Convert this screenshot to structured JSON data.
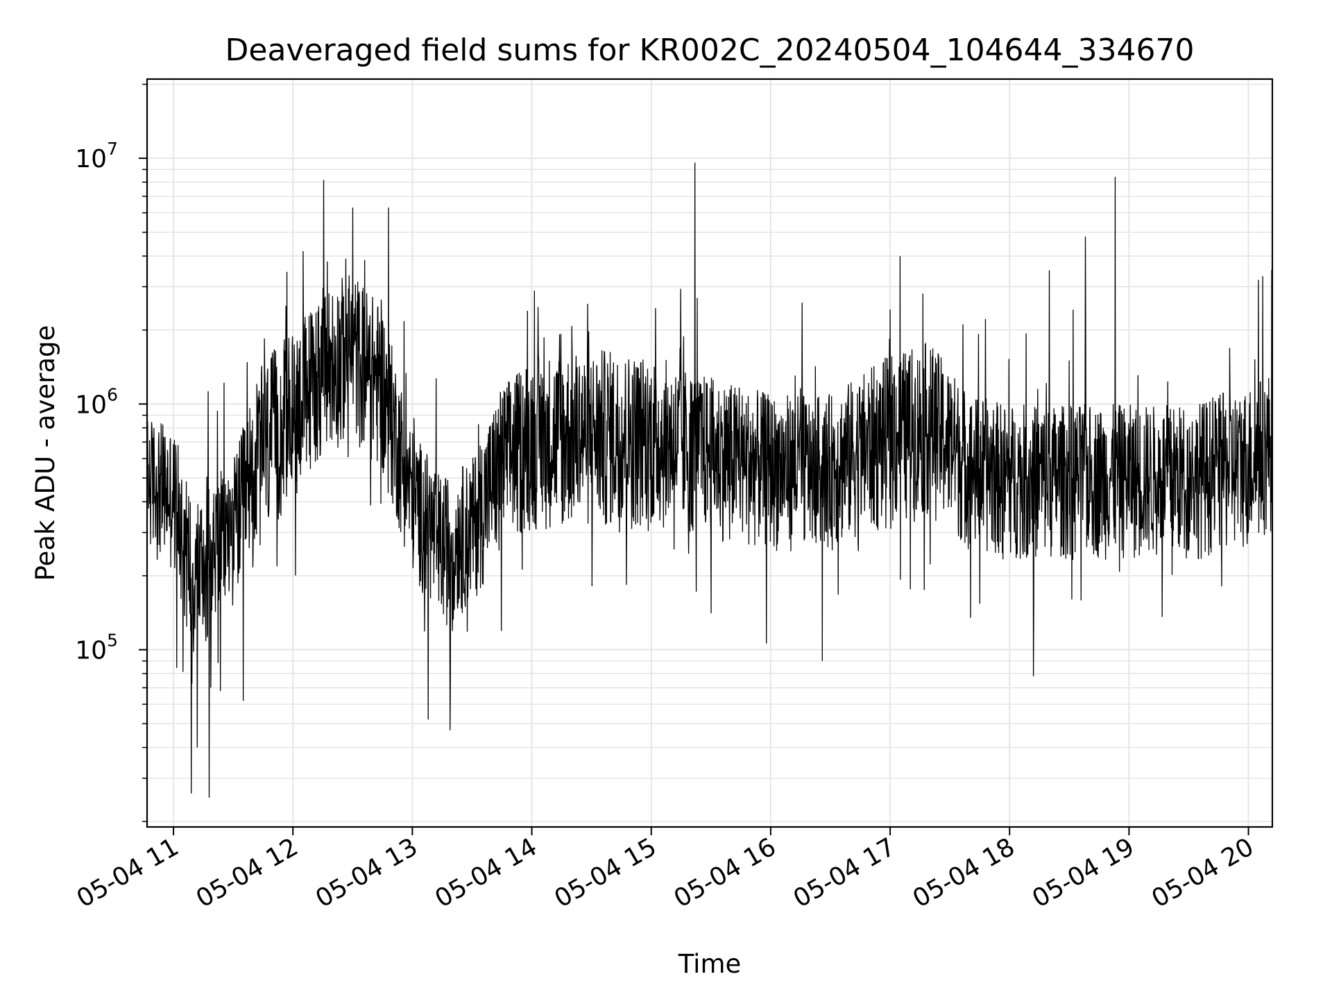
{
  "chart_data": {
    "type": "line",
    "title": "Deaveraged field sums for KR002C_20240504_104644_334670",
    "xlabel": "Time",
    "ylabel": "Peak ADU - average",
    "yscale": "log",
    "xlim": [
      "2024-05-04T10:46:44",
      "2024-05-04T20:12:00"
    ],
    "ylim": [
      19000,
      21000000
    ],
    "x_ticks": [
      {
        "t": "2024-05-04T11:00:00",
        "label": "05-04 11"
      },
      {
        "t": "2024-05-04T12:00:00",
        "label": "05-04 12"
      },
      {
        "t": "2024-05-04T13:00:00",
        "label": "05-04 13"
      },
      {
        "t": "2024-05-04T14:00:00",
        "label": "05-04 14"
      },
      {
        "t": "2024-05-04T15:00:00",
        "label": "05-04 15"
      },
      {
        "t": "2024-05-04T16:00:00",
        "label": "05-04 16"
      },
      {
        "t": "2024-05-04T17:00:00",
        "label": "05-04 17"
      },
      {
        "t": "2024-05-04T18:00:00",
        "label": "05-04 18"
      },
      {
        "t": "2024-05-04T19:00:00",
        "label": "05-04 19"
      },
      {
        "t": "2024-05-04T20:00:00",
        "label": "05-04 20"
      }
    ],
    "y_ticks": [
      {
        "value": 100000,
        "base": "10",
        "exp": "5"
      },
      {
        "value": 1000000,
        "base": "10",
        "exp": "6"
      },
      {
        "value": 10000000,
        "base": "10",
        "exp": "7"
      }
    ],
    "grid": true,
    "line_color": "#000000",
    "grid_color": "#e6e6e6",
    "envelope": [
      {
        "t": "2024-05-04T10:47:00",
        "low": 250000,
        "high": 900000
      },
      {
        "t": "2024-05-04T11:00:00",
        "low": 200000,
        "high": 800000
      },
      {
        "t": "2024-05-04T11:10:00",
        "low": 90000,
        "high": 400000
      },
      {
        "t": "2024-05-04T11:20:00",
        "low": 120000,
        "high": 500000
      },
      {
        "t": "2024-05-04T11:30:00",
        "low": 150000,
        "high": 600000
      },
      {
        "t": "2024-05-04T11:45:00",
        "low": 250000,
        "high": 1500000
      },
      {
        "t": "2024-05-04T12:00:00",
        "low": 400000,
        "high": 2000000
      },
      {
        "t": "2024-05-04T12:15:00",
        "low": 600000,
        "high": 3000000
      },
      {
        "t": "2024-05-04T12:30:00",
        "low": 700000,
        "high": 3500000
      },
      {
        "t": "2024-05-04T12:45:00",
        "low": 500000,
        "high": 2500000
      },
      {
        "t": "2024-05-04T13:00:00",
        "low": 200000,
        "high": 800000
      },
      {
        "t": "2024-05-04T13:15:00",
        "low": 120000,
        "high": 500000
      },
      {
        "t": "2024-05-04T13:30:00",
        "low": 150000,
        "high": 600000
      },
      {
        "t": "2024-05-04T13:45:00",
        "low": 250000,
        "high": 1200000
      },
      {
        "t": "2024-05-04T14:00:00",
        "low": 300000,
        "high": 1600000
      },
      {
        "t": "2024-05-04T14:30:00",
        "low": 300000,
        "high": 1700000
      },
      {
        "t": "2024-05-04T15:00:00",
        "low": 300000,
        "high": 1600000
      },
      {
        "t": "2024-05-04T15:30:00",
        "low": 280000,
        "high": 1300000
      },
      {
        "t": "2024-05-04T16:00:00",
        "low": 250000,
        "high": 1100000
      },
      {
        "t": "2024-05-04T16:30:00",
        "low": 250000,
        "high": 1100000
      },
      {
        "t": "2024-05-04T17:00:00",
        "low": 300000,
        "high": 1600000
      },
      {
        "t": "2024-05-04T17:20:00",
        "low": 350000,
        "high": 1800000
      },
      {
        "t": "2024-05-04T17:40:00",
        "low": 250000,
        "high": 1100000
      },
      {
        "t": "2024-05-04T18:00:00",
        "low": 230000,
        "high": 1000000
      },
      {
        "t": "2024-05-04T18:30:00",
        "low": 230000,
        "high": 1000000
      },
      {
        "t": "2024-05-04T19:00:00",
        "low": 230000,
        "high": 1000000
      },
      {
        "t": "2024-05-04T19:30:00",
        "low": 230000,
        "high": 1000000
      },
      {
        "t": "2024-05-04T20:00:00",
        "low": 250000,
        "high": 1200000
      },
      {
        "t": "2024-05-04T20:12:00",
        "low": 300000,
        "high": 1400000
      }
    ],
    "spikes": [
      {
        "t": "2024-05-04T11:09:00",
        "value": 26000
      },
      {
        "t": "2024-05-04T11:12:00",
        "value": 40000
      },
      {
        "t": "2024-05-04T11:18:00",
        "value": 25000
      },
      {
        "t": "2024-05-04T11:35:00",
        "value": 62000
      },
      {
        "t": "2024-05-04T12:30:00",
        "value": 6300000
      },
      {
        "t": "2024-05-04T12:48:00",
        "value": 6300000
      },
      {
        "t": "2024-05-04T13:08:00",
        "value": 52000
      },
      {
        "t": "2024-05-04T13:19:00",
        "value": 47000
      },
      {
        "t": "2024-05-04T15:22:00",
        "value": 9600000
      },
      {
        "t": "2024-05-04T16:26:00",
        "value": 90000
      },
      {
        "t": "2024-05-04T17:05:00",
        "value": 4000000
      },
      {
        "t": "2024-05-04T18:12:00",
        "value": 78000
      },
      {
        "t": "2024-05-04T18:20:00",
        "value": 3500000
      },
      {
        "t": "2024-05-04T18:38:00",
        "value": 4800000
      },
      {
        "t": "2024-05-04T18:53:00",
        "value": 8400000
      },
      {
        "t": "2024-05-04T20:05:00",
        "value": 3200000
      }
    ]
  }
}
